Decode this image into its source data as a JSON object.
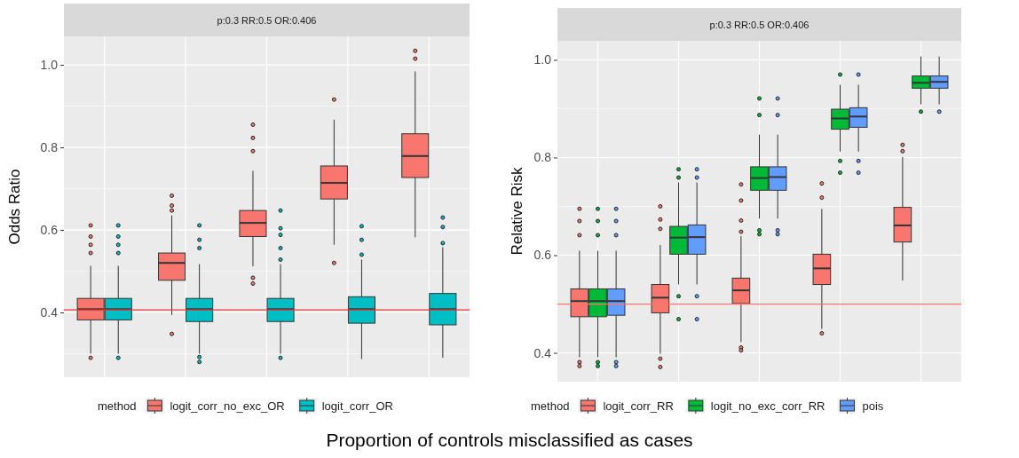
{
  "chart_data": [
    {
      "type": "box",
      "title": "p:0.3 RR:0.5 OR:0.406",
      "ylabel": "Odds Ratio",
      "xlabel": "Proportion of controls misclassified as cases",
      "legend_title": "method",
      "legend": "bottom",
      "grid": true,
      "tick_labels": "y",
      "categories": [
        null,
        null,
        null,
        null,
        null
      ],
      "ylim": [
        0.243,
        1.069
      ],
      "yticks": [
        {
          "value": 0.3,
          "label": null
        },
        {
          "value": 0.4,
          "label": "0.4"
        },
        {
          "value": 0.5,
          "label": null
        },
        {
          "value": 0.6,
          "label": "0.6"
        },
        {
          "value": 0.7,
          "label": null
        },
        {
          "value": 0.8,
          "label": "0.8"
        },
        {
          "value": 0.9,
          "label": null
        },
        {
          "value": 1.0,
          "label": "1.0"
        }
      ],
      "ref_lines": [
        {
          "axis": "y",
          "value": 0.406,
          "color": "#e8383b"
        }
      ],
      "series": [
        {
          "name": "logit_corr_no_exc_OR",
          "color": "#f8766d",
          "boxes": [
            {
              "low": 0.3,
              "q1": 0.382,
              "median": 0.408,
              "q3": 0.434,
              "high": 0.513,
              "outliers": [
                0.611,
                0.584,
                0.564,
                0.544,
                0.29
              ]
            },
            {
              "low": 0.394,
              "q1": 0.478,
              "median": 0.52,
              "q3": 0.544,
              "high": 0.635,
              "outliers": [
                0.683,
                0.659,
                0.647,
                0.348
              ]
            },
            {
              "low": 0.512,
              "q1": 0.584,
              "median": 0.617,
              "q3": 0.647,
              "high": 0.743,
              "outliers": [
                0.855,
                0.823,
                0.791,
                0.484,
                0.47
              ]
            },
            {
              "low": 0.564,
              "q1": 0.675,
              "median": 0.714,
              "q3": 0.755,
              "high": 0.867,
              "outliers": [
                0.916,
                0.52
              ]
            },
            {
              "low": 0.582,
              "q1": 0.727,
              "median": 0.779,
              "q3": 0.833,
              "high": 0.984,
              "outliers": [
                1.034,
                1.015
              ]
            }
          ]
        },
        {
          "name": "logit_corr_OR",
          "color": "#00bfc4",
          "boxes": [
            {
              "low": 0.3,
              "q1": 0.382,
              "median": 0.408,
              "q3": 0.434,
              "high": 0.513,
              "outliers": [
                0.611,
                0.584,
                0.564,
                0.544,
                0.29
              ]
            },
            {
              "low": 0.3,
              "q1": 0.378,
              "median": 0.408,
              "q3": 0.434,
              "high": 0.517,
              "outliers": [
                0.611,
                0.576,
                0.556,
                0.292,
                0.28
              ]
            },
            {
              "low": 0.3,
              "q1": 0.378,
              "median": 0.408,
              "q3": 0.434,
              "high": 0.517,
              "outliers": [
                0.647,
                0.604,
                0.588,
                0.556,
                0.528,
                0.29
              ]
            },
            {
              "low": 0.287,
              "q1": 0.374,
              "median": 0.408,
              "q3": 0.438,
              "high": 0.528,
              "outliers": [
                0.609,
                0.576,
                0.54
              ]
            },
            {
              "low": 0.29,
              "q1": 0.37,
              "median": 0.408,
              "q3": 0.446,
              "high": 0.558,
              "outliers": [
                0.63,
                0.607,
                0.568
              ]
            }
          ]
        }
      ]
    },
    {
      "type": "box",
      "title": "p:0.3 RR:0.5 OR:0.406",
      "ylabel": "Relative Risk",
      "legend_title": "method",
      "legend": "bottom",
      "grid": true,
      "tick_labels": "y",
      "categories": [
        null,
        null,
        null,
        null,
        null
      ],
      "ylim": [
        0.341,
        1.039
      ],
      "yticks": [
        {
          "value": 0.4,
          "label": "0.4"
        },
        {
          "value": 0.5,
          "label": null
        },
        {
          "value": 0.6,
          "label": "0.6"
        },
        {
          "value": 0.7,
          "label": null
        },
        {
          "value": 0.8,
          "label": "0.8"
        },
        {
          "value": 0.9,
          "label": null
        },
        {
          "value": 1.0,
          "label": "1.0"
        }
      ],
      "ref_lines": [
        {
          "axis": "y",
          "value": 0.5,
          "color": "#f8766d"
        }
      ],
      "series": [
        {
          "name": "logit_corr_RR",
          "color": "#f8766d",
          "boxes": [
            {
              "low": 0.391,
              "q1": 0.474,
              "median": 0.506,
              "q3": 0.531,
              "high": 0.609,
              "outliers": [
                0.695,
                0.67,
                0.641,
                0.381,
                0.373
              ]
            },
            {
              "low": 0.398,
              "q1": 0.482,
              "median": 0.513,
              "q3": 0.54,
              "high": 0.621,
              "outliers": [
                0.7,
                0.673,
                0.654,
                0.388,
                0.371
              ]
            },
            {
              "low": 0.422,
              "q1": 0.501,
              "median": 0.528,
              "q3": 0.553,
              "high": 0.639,
              "outliers": [
                0.745,
                0.712,
                0.671,
                0.648,
                0.411,
                0.405
              ]
            },
            {
              "low": 0.449,
              "q1": 0.54,
              "median": 0.573,
              "q3": 0.602,
              "high": 0.695,
              "outliers": [
                0.747,
                0.718,
                0.44
              ]
            },
            {
              "low": 0.548,
              "q1": 0.627,
              "median": 0.661,
              "q3": 0.698,
              "high": 0.801,
              "outliers": [
                0.826,
                0.813
              ]
            }
          ]
        },
        {
          "name": "logit_no_exc_corr_RR",
          "color": "#00ba38",
          "boxes": [
            {
              "low": 0.391,
              "q1": 0.474,
              "median": 0.506,
              "q3": 0.531,
              "high": 0.609,
              "outliers": [
                0.695,
                0.67,
                0.641,
                0.381,
                0.373
              ]
            },
            {
              "low": 0.54,
              "q1": 0.602,
              "median": 0.636,
              "q3": 0.659,
              "high": 0.749,
              "outliers": [
                0.776,
                0.759,
                0.516,
                0.469
              ]
            },
            {
              "low": 0.675,
              "q1": 0.733,
              "median": 0.758,
              "q3": 0.781,
              "high": 0.847,
              "outliers": [
                0.921,
                0.887,
                0.651,
                0.643
              ]
            },
            {
              "low": 0.812,
              "q1": 0.858,
              "median": 0.88,
              "q3": 0.899,
              "high": 0.949,
              "outliers": [
                0.97,
                0.793,
                0.769
              ]
            },
            {
              "low": 0.909,
              "q1": 0.942,
              "median": 0.953,
              "q3": 0.967,
              "high": 1.007,
              "outliers": [
                0.894
              ]
            }
          ]
        },
        {
          "name": "pois",
          "color": "#619cff",
          "boxes": [
            {
              "low": 0.391,
              "q1": 0.477,
              "median": 0.506,
              "q3": 0.531,
              "high": 0.609,
              "outliers": [
                0.695,
                0.67,
                0.641,
                0.381,
                0.373
              ]
            },
            {
              "low": 0.54,
              "q1": 0.602,
              "median": 0.637,
              "q3": 0.662,
              "high": 0.749,
              "outliers": [
                0.776,
                0.759,
                0.516,
                0.469
              ]
            },
            {
              "low": 0.675,
              "q1": 0.733,
              "median": 0.76,
              "q3": 0.781,
              "high": 0.847,
              "outliers": [
                0.921,
                0.887,
                0.651,
                0.643
              ]
            },
            {
              "low": 0.812,
              "q1": 0.862,
              "median": 0.884,
              "q3": 0.902,
              "high": 0.949,
              "outliers": [
                0.97,
                0.793,
                0.769
              ]
            },
            {
              "low": 0.909,
              "q1": 0.942,
              "median": 0.955,
              "q3": 0.967,
              "high": 1.007,
              "outliers": [
                0.894
              ]
            }
          ]
        }
      ]
    }
  ]
}
